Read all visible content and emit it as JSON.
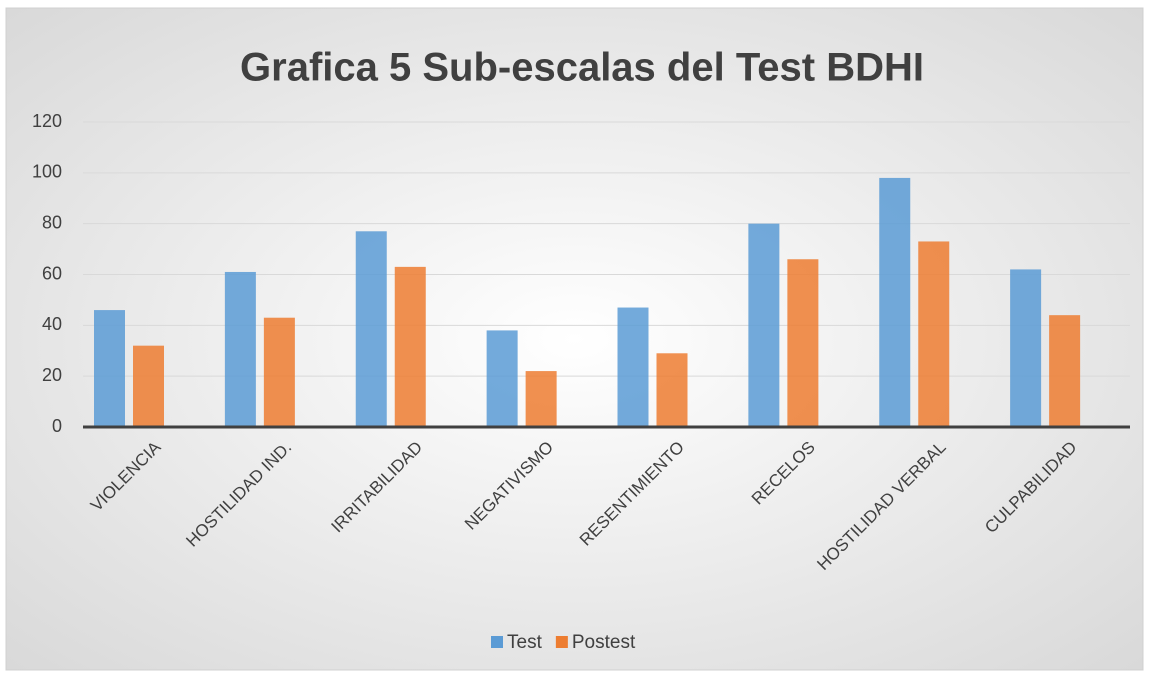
{
  "chart_data": {
    "type": "bar",
    "title": "Grafica 5 Sub-escalas del Test BDHI",
    "categories": [
      "VIOLENCIA",
      "HOSTILIDAD IND.",
      "IRRITABILIDAD",
      "NEGATIVISMO",
      "RESENTIMIENTO",
      "RECELOS",
      "HOSTILIDAD VERBAL",
      "CULPABILIDAD"
    ],
    "series": [
      {
        "name": "Test",
        "color": "#5b9bd5",
        "values": [
          46,
          61,
          77,
          38,
          47,
          80,
          98,
          62
        ]
      },
      {
        "name": "Postest",
        "color": "#ed7d31",
        "values": [
          32,
          43,
          63,
          22,
          29,
          66,
          73,
          44
        ]
      }
    ],
    "ylim": [
      0,
      120
    ],
    "yticks": [
      0,
      20,
      40,
      60,
      80,
      100,
      120
    ],
    "grid": true,
    "legend": "bottom"
  }
}
